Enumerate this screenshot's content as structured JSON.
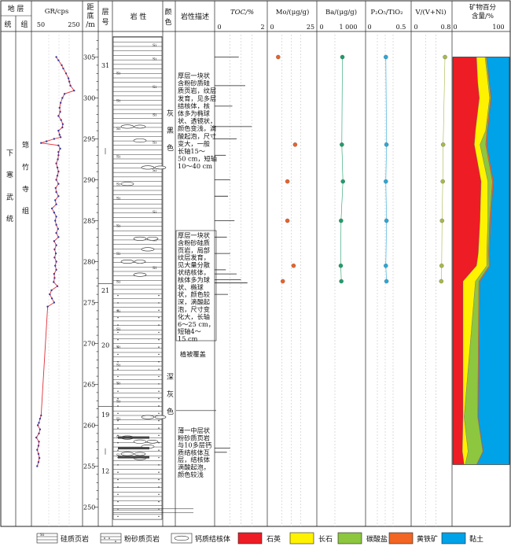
{
  "header": {
    "stratum": "地 层",
    "system": "统",
    "group": "组",
    "gr": "GR/cps",
    "gr_min": "50",
    "gr_max": "250",
    "depth_l1": "距",
    "depth_l2": "底",
    "depth_l3": "/m",
    "layer_l1": "层",
    "layer_l2": "号",
    "lithology": "岩 性",
    "color_l1": "颜",
    "color_l2": "色",
    "desc": "岩性描述",
    "toc": "TOC/%",
    "toc_min": "0",
    "toc_max": "2",
    "mo": "Mo/(μg/g)",
    "mo_min": "0",
    "mo_max": "25",
    "ba": "Ba/(μg/g)",
    "ba_min": "0",
    "ba_max": "1 000",
    "pti": "P₂O₅/TiO₂",
    "pti_min": "0",
    "pti_max": "0.5",
    "vr": "V/(V+Ni)",
    "vr_min": "0",
    "vr_max": "0.8",
    "mineral_l1": "矿物百分",
    "mineral_l2": "含量/%",
    "mineral_min": "0",
    "mineral_max": "100"
  },
  "strat": {
    "system": "下 寒 武 统",
    "group": "筇 竹 寺 组"
  },
  "color_labels": {
    "upper": "灰 黑 色",
    "lower": "深 灰 色"
  },
  "depth_ticks": [
    "305",
    "300",
    "295",
    "290",
    "285",
    "280",
    "275",
    "270",
    "265",
    "260",
    "255",
    "250"
  ],
  "layer_numbers": [
    "31",
    "21",
    "20",
    "19",
    "12"
  ],
  "descriptions": {
    "d1": [
      "厚层一块状",
      "含粉砂质硅",
      "质页岩，纹层",
      "发育，见多层",
      "结核体，核",
      "体多为椭球",
      "状、透镜状，",
      "颜色变浅，滴",
      "酸起泡，尺寸",
      "变大，一般",
      "长轴15～",
      "50 cm，短轴",
      "10～40 cm"
    ],
    "d2": [
      "厚层一块状",
      "含粉砂硅质",
      "页岩，局部",
      "纹层发育，",
      "见大量分散",
      "状结核体，",
      "核体多为球",
      "状、椭球",
      "状，颜色较",
      "深，滴酸起",
      "泡，尺寸变",
      "化大，长轴",
      "6～25 cm，",
      "短轴4～",
      "15 cm"
    ],
    "d3": [
      "植被覆盖"
    ],
    "d4": [
      "薄一中层状",
      "粉砂质页岩",
      "与10多层钙",
      "质结核体互",
      "层，结核体",
      "滴酸起泡，",
      "颜色较浅"
    ]
  },
  "legend": {
    "siliceous_shale": "硅质页岩",
    "silty_shale": "粉砂质页岩",
    "calcareous_nodule": "钙质结核体",
    "quartz": "石英",
    "feldspar": "长石",
    "carbonate": "碳酸盐",
    "pyrite": "黄铁矿",
    "clay": "黏土",
    "si_symbol": "Si"
  },
  "colors": {
    "quartz": "#ee1c24",
    "feldspar": "#fff200",
    "carbonate": "#8dc63f",
    "pyrite": "#f26522",
    "clay": "#00a2e8",
    "mo_dot": "#e8622a",
    "ba_dot": "#1e9e6a",
    "pti_dot": "#2aa8d8",
    "vr_dot": "#a8b84a",
    "gr_line": "#e0303a",
    "gr_dot": "#3a3a9a"
  },
  "chart_data": {
    "type": "line",
    "depth_axis": {
      "label": "距底/m",
      "min": 248,
      "max": 308
    },
    "gr_points": [
      [
        305,
        140
      ],
      [
        304.6,
        150
      ],
      [
        304,
        165
      ],
      [
        303.6,
        172
      ],
      [
        303,
        185
      ],
      [
        302.4,
        196
      ],
      [
        302,
        200
      ],
      [
        301.5,
        205
      ],
      [
        300.9,
        222
      ],
      [
        300.5,
        178
      ],
      [
        300,
        168
      ],
      [
        299.4,
        160
      ],
      [
        298.8,
        155
      ],
      [
        298.3,
        158
      ],
      [
        297.8,
        150
      ],
      [
        297.3,
        162
      ],
      [
        296.8,
        170
      ],
      [
        296.4,
        168
      ],
      [
        296,
        150
      ],
      [
        295.5,
        155
      ],
      [
        295.2,
        160
      ],
      [
        295,
        130
      ],
      [
        294.7,
        95
      ],
      [
        294.5,
        70
      ],
      [
        294.2,
        150
      ],
      [
        293.8,
        158
      ],
      [
        293.4,
        150
      ],
      [
        293,
        150
      ],
      [
        292.5,
        147
      ],
      [
        292,
        140
      ],
      [
        291.5,
        145
      ],
      [
        291,
        150
      ],
      [
        290.5,
        145
      ],
      [
        290,
        140
      ],
      [
        289.5,
        150
      ],
      [
        289,
        137
      ],
      [
        288.5,
        140
      ],
      [
        288,
        150
      ],
      [
        287.5,
        135
      ],
      [
        287,
        140
      ],
      [
        286.5,
        120
      ],
      [
        286,
        130
      ],
      [
        285.5,
        140
      ],
      [
        285,
        135
      ],
      [
        284.5,
        140
      ],
      [
        284,
        148
      ],
      [
        283.5,
        140
      ],
      [
        283,
        150
      ],
      [
        282.5,
        130
      ],
      [
        282,
        140
      ],
      [
        281.5,
        132
      ],
      [
        281,
        138
      ],
      [
        280.5,
        132
      ],
      [
        280,
        140
      ],
      [
        279.5,
        135
      ],
      [
        279,
        140
      ],
      [
        278.5,
        130
      ],
      [
        278,
        132
      ],
      [
        277.5,
        128
      ],
      [
        277,
        145
      ],
      [
        276.5,
        118
      ],
      [
        276,
        110
      ],
      [
        275.5,
        120
      ],
      [
        275,
        130
      ],
      [
        274.5,
        100
      ],
      [
        261.2,
        70
      ],
      [
        260.8,
        65
      ],
      [
        260.3,
        60
      ],
      [
        260,
        55
      ],
      [
        259.5,
        65
      ],
      [
        259,
        60
      ],
      [
        258.5,
        48
      ],
      [
        258,
        60
      ],
      [
        257.5,
        58
      ],
      [
        257,
        52
      ],
      [
        256.5,
        58
      ],
      [
        256,
        62
      ],
      [
        255.5,
        58
      ],
      [
        255,
        52
      ]
    ],
    "toc_marks": [
      [
        305,
        0.9
      ],
      [
        301.5,
        1.2
      ],
      [
        299,
        0.6
      ],
      [
        296.5,
        1.5
      ],
      [
        295,
        0.8
      ],
      [
        293,
        0.3
      ],
      [
        290,
        0.5
      ],
      [
        288,
        0.4
      ],
      [
        285,
        0.7
      ],
      [
        283,
        0.35
      ],
      [
        281,
        0.5
      ],
      [
        279,
        0.3
      ],
      [
        278.5,
        0.8
      ],
      [
        277.8,
        1.0
      ],
      [
        277.4,
        1.3
      ],
      [
        276,
        0.4
      ],
      [
        257.2,
        0.5
      ],
      [
        256.7,
        0.35
      ]
    ],
    "mo_points": [
      [
        305,
        4
      ],
      [
        294.3,
        15
      ],
      [
        289.8,
        10
      ],
      [
        285,
        10
      ],
      [
        279.5,
        14
      ],
      [
        277.6,
        7
      ]
    ],
    "ba_points": [
      [
        305,
        780
      ],
      [
        294.3,
        760
      ],
      [
        289.8,
        800
      ],
      [
        285,
        730
      ],
      [
        279.5,
        720
      ],
      [
        277.6,
        740
      ]
    ],
    "pti_points": [
      [
        305,
        0.26
      ],
      [
        294.3,
        0.27
      ],
      [
        289.8,
        0.26
      ],
      [
        285,
        0.27
      ],
      [
        279.5,
        0.26
      ],
      [
        277.6,
        0.27
      ]
    ],
    "vr_points": [
      [
        305,
        0.78
      ],
      [
        294.3,
        0.73
      ],
      [
        289.8,
        0.72
      ],
      [
        285,
        0.7
      ],
      [
        279.5,
        0.69
      ],
      [
        277.6,
        0.68
      ]
    ],
    "mineral_series_names": [
      "石英",
      "长石",
      "碳酸盐",
      "黄铁矿",
      "黏土"
    ],
    "mineral_samples": [
      {
        "depth": 305,
        "values": [
          42,
          15,
          2,
          1,
          40
        ]
      },
      {
        "depth": 302,
        "values": [
          44,
          18,
          2,
          1,
          35
        ]
      },
      {
        "depth": 300,
        "values": [
          47,
          18,
          2,
          1,
          32
        ]
      },
      {
        "depth": 296,
        "values": [
          40,
          18,
          2,
          2,
          38
        ]
      },
      {
        "depth": 294.3,
        "values": [
          38,
          10,
          10,
          2,
          40
        ]
      },
      {
        "depth": 289.8,
        "values": [
          50,
          12,
          8,
          2,
          28
        ]
      },
      {
        "depth": 285,
        "values": [
          48,
          14,
          3,
          2,
          33
        ]
      },
      {
        "depth": 281,
        "values": [
          45,
          15,
          3,
          2,
          35
        ]
      },
      {
        "depth": 279.5,
        "values": [
          42,
          18,
          4,
          2,
          34
        ]
      },
      {
        "depth": 277.6,
        "values": [
          18,
          22,
          6,
          2,
          52
        ]
      },
      {
        "depth": 261,
        "values": [
          18,
          2,
          24,
          1,
          55
        ]
      },
      {
        "depth": 256.8,
        "values": [
          17,
          10,
          26,
          1,
          46
        ]
      },
      {
        "depth": 255.2,
        "values": [
          20,
          2,
          20,
          1,
          57
        ]
      }
    ]
  }
}
